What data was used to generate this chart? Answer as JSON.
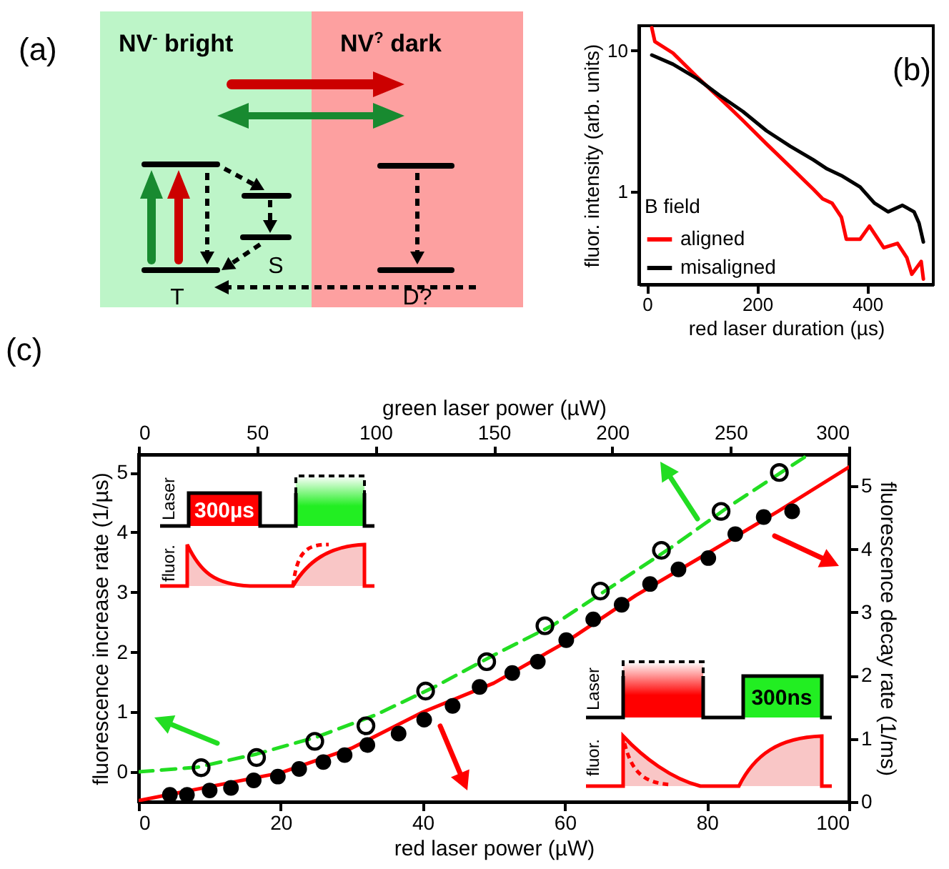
{
  "chart_data": [
    {
      "type": "other",
      "annotations": [
        "(a)",
        "NV$^{-}$ bright",
        "NV$^{?}$ dark",
        "T",
        "S",
        "D?"
      ]
    },
    {
      "type": "line",
      "xlabel": "red laser duration (µs)",
      "ylabel": "fluor. intensity (arb. units)",
      "legend_title": "B field",
      "legend": "bottom left",
      "log": "y",
      "xlim": [
        -15,
        520
      ],
      "xticks": [
        0,
        200,
        400
      ],
      "ylim": [
        0.22,
        15
      ],
      "yticks": [
        1,
        10
      ],
      "annotations": [
        "(b)"
      ],
      "series": [
        {
          "name": "aligned",
          "color": "#ff0000",
          "x": [
            8.5,
            14,
            47,
            89,
            132,
            174,
            217,
            260,
            302,
            319,
            336,
            353,
            362,
            387,
            404,
            430,
            455,
            472,
            481,
            498,
            502
          ],
          "values": [
            14.5,
            11.6,
            9.6,
            6.6,
            4.6,
            3.2,
            2.18,
            1.5,
            1.04,
            0.89,
            0.83,
            0.66,
            0.46,
            0.46,
            0.57,
            0.4,
            0.43,
            0.34,
            0.26,
            0.32,
            0.24
          ]
        },
        {
          "name": "misaligned",
          "color": "#000000",
          "x": [
            8.5,
            47,
            89,
            132,
            174,
            217,
            260,
            302,
            327,
            353,
            387,
            413,
            438,
            464,
            485,
            494,
            502
          ],
          "values": [
            9.3,
            8.0,
            6.4,
            4.8,
            3.7,
            2.7,
            2.1,
            1.68,
            1.45,
            1.3,
            1.08,
            0.83,
            0.72,
            0.8,
            0.72,
            0.6,
            0.44
          ]
        }
      ]
    },
    {
      "type": "scatter",
      "xlabel": "red laser power (µW)",
      "x2label": "green laser power (µW)",
      "ylabel": "fluorescence increase rate (1/µs)",
      "y2label": "fluorescence decay rate (1/ms)",
      "xlim": [
        0,
        100
      ],
      "xticks": [
        0,
        20,
        40,
        60,
        80,
        100
      ],
      "x2lim": [
        0,
        300
      ],
      "x2ticks": [
        0,
        50,
        100,
        150,
        200,
        250,
        300
      ],
      "ylim": [
        -0.5,
        5.3
      ],
      "yticks": [
        0,
        1,
        2,
        3,
        4,
        5
      ],
      "y2lim": [
        0,
        5.5
      ],
      "y2ticks": [
        0,
        1,
        2,
        3,
        4,
        5
      ],
      "annotations": [
        "(c)",
        "Laser",
        "fluor.",
        "300µs",
        "Laser",
        "fluor.",
        "300ns"
      ],
      "series": [
        {
          "type": "line",
          "axis": "x2",
          "color": "#22dd22",
          "line_style": "dashed",
          "x": [
            0,
            25,
            50,
            75,
            100,
            125,
            150,
            175,
            200,
            225,
            250,
            283
          ],
          "values": [
            0,
            0.08,
            0.3,
            0.58,
            0.95,
            1.42,
            1.95,
            2.45,
            3.1,
            3.75,
            4.45,
            5.3
          ]
        },
        {
          "type": "scatter",
          "axis": "x2",
          "color": "#000000",
          "marker": "circle",
          "x": [
            26.4,
            49.8,
            74.4,
            96,
            121.2,
            147,
            171.6,
            195,
            220.8,
            246,
            270.6
          ],
          "values": [
            0.07,
            0.24,
            0.51,
            0.77,
            1.35,
            1.84,
            2.44,
            3.02,
            3.7,
            4.35,
            5.0
          ]
        },
        {
          "type": "line",
          "axis": "y2",
          "color": "#ff0000",
          "line_style": "solid",
          "x": [
            0,
            20,
            30,
            40,
            50,
            60,
            70,
            80,
            90,
            100
          ],
          "values": [
            0.02,
            0.46,
            0.85,
            1.42,
            1.88,
            2.52,
            3.27,
            3.93,
            4.6,
            5.3
          ]
        },
        {
          "type": "scatter",
          "axis": "y2",
          "color": "#000000",
          "marker": "circle",
          "x": [
            4.4,
            6.8,
            10,
            13,
            16.2,
            19.6,
            22.6,
            26,
            29,
            32.2,
            36.6,
            40.2,
            44.2,
            48,
            52.6,
            56.2,
            60.2,
            64,
            68,
            72,
            76,
            80.2,
            84,
            88,
            92
          ],
          "values": [
            0.11,
            0.11,
            0.18,
            0.22,
            0.34,
            0.4,
            0.52,
            0.63,
            0.74,
            0.9,
            1.08,
            1.3,
            1.52,
            1.82,
            2.04,
            2.22,
            2.56,
            2.89,
            3.12,
            3.45,
            3.68,
            3.86,
            4.24,
            4.51,
            4.6
          ]
        }
      ]
    }
  ]
}
